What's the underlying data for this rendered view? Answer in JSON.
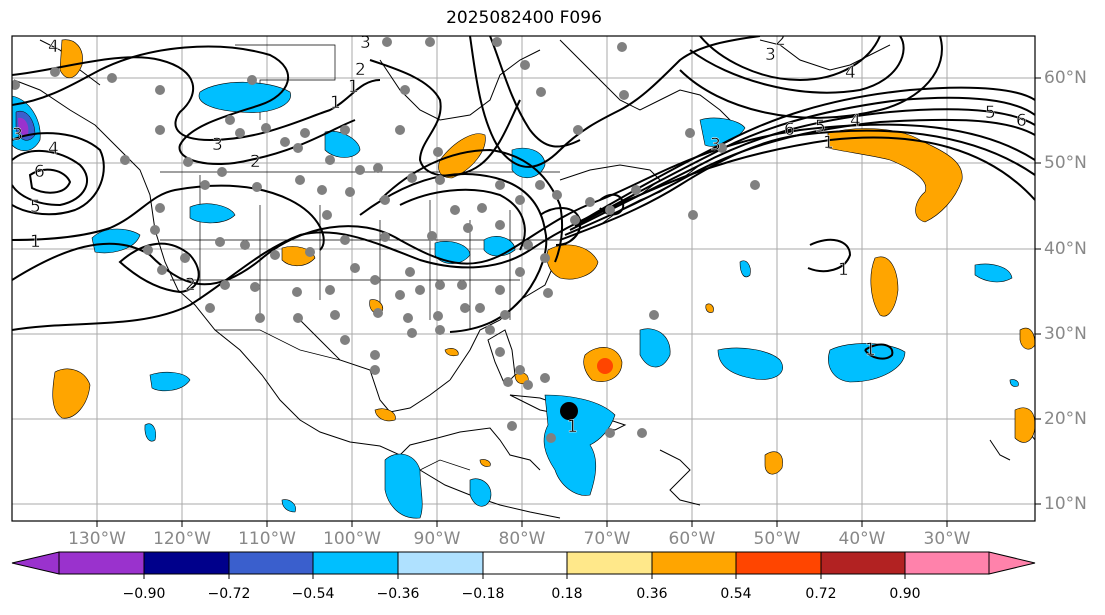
{
  "title": "2025082400 F096",
  "lon_labels": [
    "130°W",
    "120°W",
    "110°W",
    "100°W",
    "90°W",
    "80°W",
    "70°W",
    "60°W",
    "50°W",
    "40°W",
    "30°W"
  ],
  "lat_labels": [
    "60°N",
    "50°N",
    "40°N",
    "30°N",
    "20°N",
    "10°N"
  ],
  "colorbar": {
    "ticks": [
      "−0.90",
      "−0.72",
      "−0.54",
      "−0.36",
      "−0.18",
      "0.18",
      "0.36",
      "0.54",
      "0.72",
      "0.90"
    ],
    "colors": [
      "#9a32cd",
      "#00008b",
      "#3a5fcd",
      "#00bfff",
      "#afe1ff",
      "#ffffff",
      "#ffe88a",
      "#ffa500",
      "#ff4500",
      "#b22222",
      "#ff82ab"
    ]
  },
  "contour_labels": [
    "4",
    "3",
    "2",
    "1",
    "4",
    "3",
    "3",
    "2",
    "1",
    "6",
    "5",
    "4",
    "1",
    "2",
    "3",
    "3",
    "1",
    "6",
    "5",
    "4",
    "1",
    "5",
    "6",
    "2",
    "1",
    "1"
  ],
  "colors": {
    "positive": "#ffa500",
    "negative": "#00bfff",
    "strong_negative": "#3a5fcd",
    "strong_positive": "#ff4500",
    "station": "#808080"
  }
}
